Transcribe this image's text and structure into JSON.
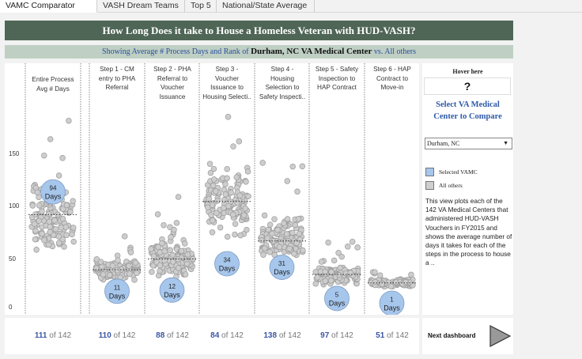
{
  "tabs": [
    {
      "label": "VAMC Comparator",
      "active": true
    },
    {
      "label": "VASH Dream Teams",
      "active": false
    },
    {
      "label": "Top 5",
      "active": false
    },
    {
      "label": "National/State Average",
      "active": false
    }
  ],
  "banner": {
    "title": "How Long Does it take to House a Homeless Veteran with HUD-VASH?",
    "subtitle_prefix": "Showing Average # Process Days and Rank of",
    "subtitle_center": "Durham, NC VA Medical Center",
    "subtitle_suffix": "vs. All others"
  },
  "chart_data": {
    "type": "scatter",
    "ylim": [
      0,
      175
    ],
    "yticks": [
      "0",
      "50",
      "100",
      "150"
    ],
    "categories": [
      "Entire Process\nAvg # Days",
      "Step 1 - CM\nentry to PHA\nReferral",
      "Step 2 - PHA\nReferral to\nVoucher\nIssuance",
      "Step 3 -\nVoucher\nIssuance to\nHousing Selecti..",
      "Step 4 -\nHousing\nSelection to\nSafety Inspecti..",
      "Step 5 - Safety\nInspection to\nHAP Contract",
      "Step 6 - HAP\nContract to\nMove-in"
    ],
    "selected": {
      "name": "Durham, NC",
      "values": [
        94,
        11,
        12,
        34,
        31,
        5,
        1
      ],
      "labels": [
        "94\nDays",
        "11\nDays",
        "12\nDays",
        "34\nDays",
        "31\nDays",
        "5\nDays",
        "1\nDays"
      ]
    },
    "averages": [
      75,
      29,
      38,
      86,
      53,
      25,
      18
    ],
    "series": [
      {
        "name": "Selected VAMC",
        "color": "#a6c6ec"
      },
      {
        "name": "All others",
        "color": "#c8c8c8"
      }
    ]
  },
  "side": {
    "hover_title": "Hover here",
    "hover_value": "?",
    "select_label": "Select VA Medical\nCenter to Compare",
    "selected_vamc": "Durham, NC",
    "legend": [
      {
        "label": "Selected VAMC",
        "color": "#a6c6ec"
      },
      {
        "label": "All others",
        "color": "#cfcfcf"
      }
    ],
    "description": "This view plots each of the 142 VA Medical Centers that administered HUD-VASH Vouchers in FY2015 and shows the average number of days it takes for each of the steps in the process to house a .."
  },
  "ranks": [
    {
      "rank": "111",
      "of": "of 142"
    },
    {
      "rank": "110",
      "of": "of 142"
    },
    {
      "rank": "88",
      "of": "of 142"
    },
    {
      "rank": "84",
      "of": "of 142"
    },
    {
      "rank": "138",
      "of": "of 142"
    },
    {
      "rank": "97",
      "of": "of 142"
    },
    {
      "rank": "51",
      "of": "of 142"
    }
  ],
  "next": {
    "label": "Next dashboard",
    "icon": "play-arrow-icon"
  }
}
